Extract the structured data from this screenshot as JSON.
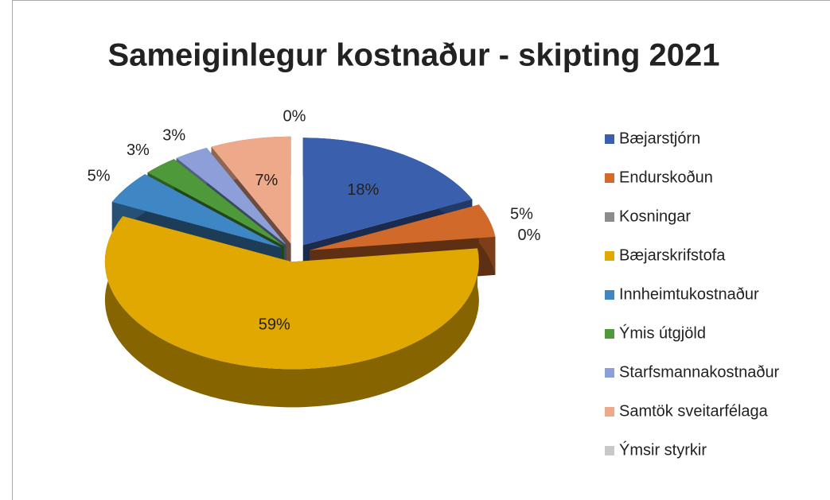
{
  "chart_data": {
    "type": "pie",
    "title": "Sameiginlegur kostnaður - skipting 2021",
    "categories": [
      "Bæjarstjórn",
      "Endurskoðun",
      "Kosningar",
      "Bæjarskrifstofa",
      "Innheimtukostnaður",
      "Ýmis útgjöld",
      "Starfsmannakostnaður",
      "Samtök sveitarfélaga",
      "Ýmsir styrkir"
    ],
    "values": [
      18,
      5,
      0,
      59,
      5,
      3,
      3,
      7,
      0
    ],
    "value_labels": [
      "18%",
      "5%",
      "0%",
      "59%",
      "5%",
      "3%",
      "3%",
      "7%",
      "0%"
    ],
    "colors": [
      "#3a5fad",
      "#d0692a",
      "#8c8c8c",
      "#e0a800",
      "#3f86c4",
      "#4e9a3a",
      "#8d9fd8",
      "#eea88a",
      "#c8c8c8"
    ],
    "legend": "right"
  }
}
